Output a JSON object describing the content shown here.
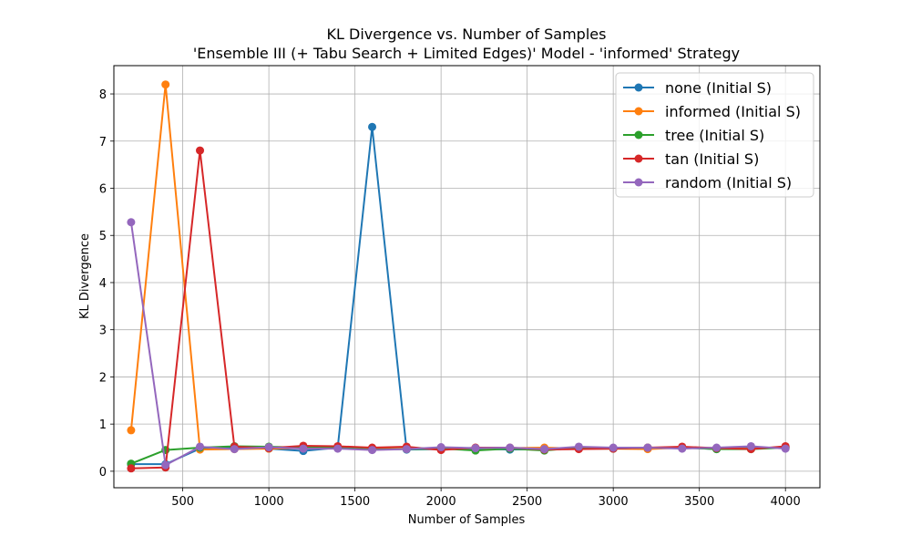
{
  "chart_data": {
    "type": "line",
    "title": "KL Divergence vs. Number of Samples",
    "subtitle": "'Ensemble III (+ Tabu Search + Limited Edges)' Model - 'informed' Strategy",
    "xlabel": "Number of Samples",
    "ylabel": "KL Divergence",
    "xlim": [
      100,
      4200
    ],
    "ylim": [
      -0.35,
      8.6
    ],
    "xticks": [
      500,
      1000,
      1500,
      2000,
      2500,
      3000,
      3500,
      4000
    ],
    "yticks": [
      0,
      1,
      2,
      3,
      4,
      5,
      6,
      7,
      8
    ],
    "grid": true,
    "legend_position": "top-right",
    "x": [
      200,
      400,
      600,
      800,
      1000,
      1200,
      1400,
      1600,
      1800,
      2000,
      2200,
      2400,
      2600,
      2800,
      3000,
      3200,
      3400,
      3600,
      3800,
      4000
    ],
    "series": [
      {
        "name": "none (Initial S)",
        "color": "#1f77b4",
        "values": [
          0.15,
          0.15,
          0.48,
          0.5,
          0.48,
          0.43,
          0.5,
          7.3,
          0.46,
          0.47,
          0.48,
          0.46,
          0.47,
          0.48,
          0.48,
          0.49,
          0.5,
          0.47,
          0.5,
          0.5
        ]
      },
      {
        "name": "informed (Initial S)",
        "color": "#ff7f0e",
        "values": [
          0.87,
          8.2,
          0.46,
          0.47,
          0.48,
          0.49,
          0.5,
          0.47,
          0.48,
          0.48,
          0.49,
          0.49,
          0.5,
          0.48,
          0.48,
          0.47,
          0.5,
          0.48,
          0.48,
          0.5
        ]
      },
      {
        "name": "tree (Initial S)",
        "color": "#2ca02c",
        "values": [
          0.16,
          0.45,
          0.5,
          0.53,
          0.52,
          0.5,
          0.5,
          0.46,
          0.47,
          0.48,
          0.44,
          0.48,
          0.44,
          0.5,
          0.48,
          0.5,
          0.5,
          0.47,
          0.47,
          0.5
        ]
      },
      {
        "name": "tan (Initial S)",
        "color": "#d62728",
        "values": [
          0.06,
          0.08,
          6.8,
          0.52,
          0.49,
          0.54,
          0.53,
          0.5,
          0.52,
          0.45,
          0.5,
          0.5,
          0.46,
          0.47,
          0.48,
          0.5,
          0.52,
          0.49,
          0.47,
          0.53
        ]
      },
      {
        "name": "random (Initial S)",
        "color": "#9467bd",
        "values": [
          5.28,
          0.13,
          0.52,
          0.47,
          0.51,
          0.48,
          0.48,
          0.45,
          0.47,
          0.51,
          0.49,
          0.5,
          0.47,
          0.52,
          0.5,
          0.5,
          0.48,
          0.5,
          0.53,
          0.48
        ]
      }
    ]
  }
}
